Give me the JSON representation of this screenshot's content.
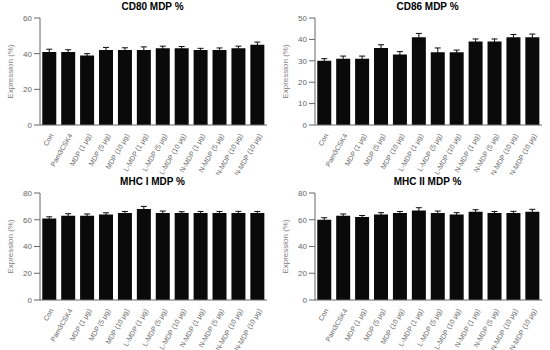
{
  "chart_data": [
    {
      "type": "bar",
      "title": "CD80 MDP %",
      "ylabel": "Expression (%)",
      "categories": [
        "Con",
        "Pam3CSK4",
        "MDP (1 μg)",
        "MDP (5 μg)",
        "MDP (10 μg)",
        "L-MDP (1 μg)",
        "L-MDP (5 μg)",
        "L-MDP (10 μg)",
        "N-MDP (1 μg)",
        "N-MDP (5 μg)",
        "N-MDP (10 μg)",
        "N-MDP (10 μg)"
      ],
      "values": [
        41,
        41,
        39,
        42,
        42,
        42,
        43,
        43,
        42,
        42,
        43,
        45
      ],
      "errors": [
        1.5,
        1.2,
        1.0,
        1.5,
        1.3,
        1.8,
        1.2,
        1.0,
        1.0,
        1.2,
        1.2,
        1.5
      ],
      "ylim": [
        0,
        60
      ],
      "yticks": [
        0,
        20,
        40,
        60
      ],
      "color": "#0a0a0a",
      "grid": false
    },
    {
      "type": "bar",
      "title": "CD86 MDP %",
      "ylabel": "Expression (%)",
      "categories": [
        "Con",
        "Pam3CSK4",
        "MDP (1 μg)",
        "MDP (5 μg)",
        "MDP (10 μg)",
        "L-MDP (1 μg)",
        "L-MDP (5 μg)",
        "L-MDP (10 μg)",
        "N-MDP (1 μg)",
        "N-MDP (5 μg)",
        "N-MDP (10 μg)",
        "N-MDP (10 μg)"
      ],
      "values": [
        30,
        31,
        31,
        36,
        33,
        41,
        34,
        34,
        39,
        39,
        41,
        41
      ],
      "errors": [
        1.0,
        1.2,
        1.2,
        1.5,
        1.3,
        1.8,
        2.0,
        1.0,
        1.2,
        1.2,
        1.3,
        1.5
      ],
      "ylim": [
        0,
        50
      ],
      "yticks": [
        0,
        10,
        20,
        30,
        40,
        50
      ],
      "color": "#0a0a0a",
      "grid": false
    },
    {
      "type": "bar",
      "title": "MHC I MDP %",
      "ylabel": "Expression (%)",
      "categories": [
        "Con",
        "Pam3CSK4",
        "MDP (1 μg)",
        "MDP (5 μg)",
        "MDP (10 μg)",
        "L-MDP (1 μg)",
        "L-MDP (5 μg)",
        "L-MDP (10 μg)",
        "N-MDP (1 μg)",
        "N-MDP (5 μg)",
        "N-MDP (10 μg)",
        "N-MDP (10 μg)"
      ],
      "values": [
        61,
        63,
        63,
        64,
        65,
        68,
        65,
        65,
        65,
        65,
        65,
        65
      ],
      "errors": [
        1.2,
        1.5,
        1.3,
        1.2,
        1.2,
        2.0,
        1.5,
        1.0,
        1.2,
        1.2,
        1.3,
        1.2
      ],
      "ylim": [
        0,
        80
      ],
      "yticks": [
        0,
        20,
        40,
        60,
        80
      ],
      "color": "#0a0a0a",
      "grid": false
    },
    {
      "type": "bar",
      "title": "MHC II MDP %",
      "ylabel": "Expression (%)",
      "categories": [
        "Con",
        "Pam3CSK4",
        "MDP (1 μg)",
        "MDP (5 μg)",
        "MDP (10 μg)",
        "L-MDP (1 μg)",
        "L-MDP (5 μg)",
        "L-MDP (10 μg)",
        "N-MDP (1 μg)",
        "N-MDP (5 μg)",
        "N-MDP (10 μg)",
        "N-MDP (10 μg)"
      ],
      "values": [
        60,
        63,
        62,
        64,
        65,
        67,
        65,
        64,
        66,
        65,
        65,
        66
      ],
      "errors": [
        1.5,
        1.3,
        1.2,
        1.3,
        1.2,
        2.0,
        1.5,
        1.3,
        1.5,
        1.2,
        1.3,
        1.8
      ],
      "ylim": [
        0,
        80
      ],
      "yticks": [
        0,
        20,
        40,
        60,
        80
      ],
      "color": "#0a0a0a",
      "grid": false
    }
  ]
}
